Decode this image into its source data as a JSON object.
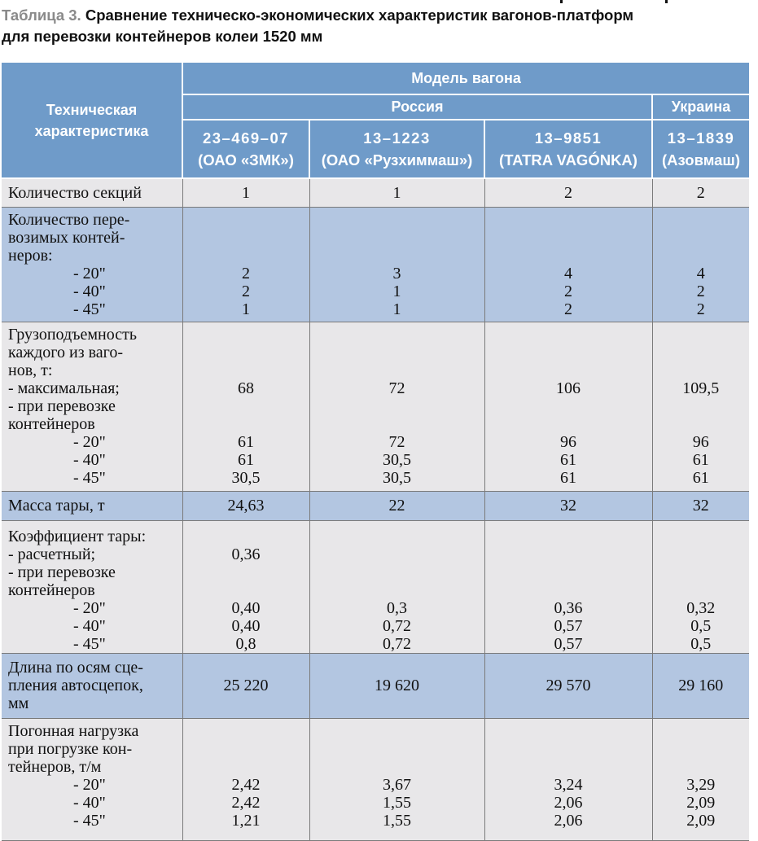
{
  "caption": {
    "label": "Таблица 3.",
    "title_line1": "Сравнение техническо-экономических характеристик вагонов-платформ",
    "title_line2": "для перевозки контейнеров колеи 1520 мм"
  },
  "header": {
    "row_header": "Техническая характеристика",
    "group": "Модель вагона",
    "countries": {
      "russia": "Россия",
      "ukraine": "Украина"
    },
    "models": [
      {
        "code": "23–469–07",
        "maker": "(ОАО «ЗМК»)"
      },
      {
        "code": "13–1223",
        "maker": "(ОАО «Рузхиммаш»)"
      },
      {
        "code": "13–9851",
        "maker": "(TATRA VAGÓNKA)"
      },
      {
        "code": "13–1839",
        "maker": "(Азовмаш)"
      }
    ]
  },
  "rows": {
    "sections": {
      "label": "Количество секций",
      "values": [
        "1",
        "1",
        "2",
        "2"
      ]
    },
    "containers": {
      "label_lines": [
        "Количество пере-",
        "возимых контей-",
        "неров:"
      ],
      "sub": [
        "- 20\"",
        "- 40\"",
        "- 45\""
      ],
      "values": [
        [
          "2",
          "2",
          "1"
        ],
        [
          "3",
          "1",
          "1"
        ],
        [
          "4",
          "2",
          "2"
        ],
        [
          "4",
          "2",
          "2"
        ]
      ]
    },
    "capacity": {
      "label_lines": [
        "Грузоподъемность",
        "каждого из ваго-",
        "нов, т:",
        "- максимальная;",
        "- при перевозке",
        "контейнеров"
      ],
      "sub": [
        "- 20\"",
        "- 40\"",
        "- 45\""
      ],
      "max": [
        "68",
        "72",
        "106",
        "109,5"
      ],
      "values": [
        [
          "61",
          "61",
          "30,5"
        ],
        [
          "72",
          "30,5",
          "30,5"
        ],
        [
          "96",
          "61",
          "61"
        ],
        [
          "96",
          "61",
          "61"
        ]
      ]
    },
    "tare_mass": {
      "label": "Масса тары, т",
      "values": [
        "24,63",
        "22",
        "32",
        "32"
      ]
    },
    "tare_coef": {
      "label_lines": [
        "Коэффициент тары:",
        "- расчетный;",
        "- при перевозке",
        "контейнеров"
      ],
      "sub": [
        "- 20\"",
        "- 40\"",
        "- 45\""
      ],
      "calc": [
        "0,36",
        "",
        "",
        ""
      ],
      "values": [
        [
          "0,40",
          "0,40",
          "0,8"
        ],
        [
          "0,3",
          "0,72",
          "0,72"
        ],
        [
          "0,36",
          "0,57",
          "0,57"
        ],
        [
          "0,32",
          "0,5",
          "0,5"
        ]
      ]
    },
    "length": {
      "label_lines": [
        "Длина по осям сце-",
        "пления автосцепок,",
        "мм"
      ],
      "values": [
        "25 220",
        "19 620",
        "29 570",
        "29 160"
      ]
    },
    "load": {
      "label_lines": [
        "Погонная нагрузка",
        "при погрузке кон-",
        "тейнеров, т/м"
      ],
      "sub": [
        "- 20\"",
        "- 40\"",
        "- 45\""
      ],
      "values": [
        [
          "2,42",
          "2,42",
          "1,21"
        ],
        [
          "3,67",
          "1,55",
          "1,55"
        ],
        [
          "3,24",
          "2,06",
          "2,06"
        ],
        [
          "3,29",
          "2,09",
          "2,09"
        ]
      ]
    }
  },
  "colors": {
    "header_bg": "#6f9bc9",
    "row_blue": "#b3c6e1",
    "row_gray": "#e8e7e9",
    "caption_label": "#8a8a8a"
  }
}
